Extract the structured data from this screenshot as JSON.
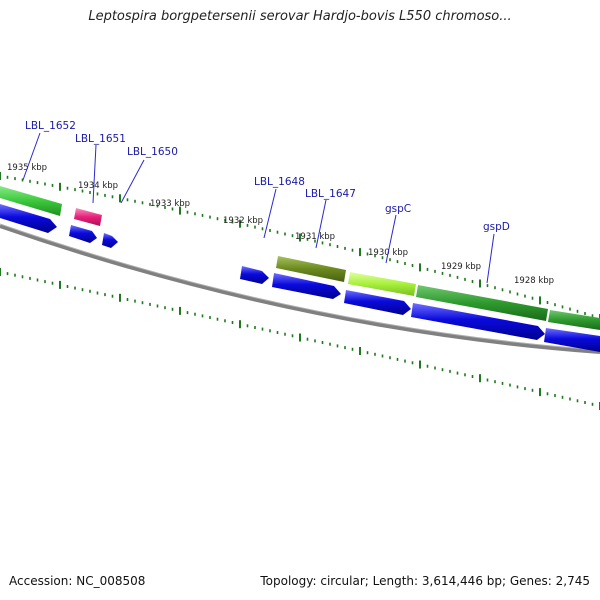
{
  "title": "Leptospira borgpetersenii serovar Hardjo-bovis L550 chromoso...",
  "footer": {
    "accession": "Accession: NC_008508",
    "topology": "Topology: circular; Length: 3,614,446 bp; Genes: 2,745"
  },
  "colors": {
    "backbone": "#808080",
    "tick": "#1f7a1f",
    "cds": "#0a0adc",
    "label": "#1a1aa6",
    "leader_line": "#2a2ad0"
  },
  "kbp_labels": [
    "1935 kbp",
    "1934 kbp",
    "1933 kbp",
    "1932 kbp",
    "1931 kbp",
    "1930 kbp",
    "1929 kbp",
    "1928 kbp"
  ],
  "gene_labels": [
    "LBL_1652",
    "LBL_1651",
    "LBL_1650",
    "LBL_1648",
    "LBL_1647",
    "gspC",
    "gspD"
  ],
  "gene_track_colors": {
    "LBL_1652": "#3cc83c",
    "LBL_1651": "#e8207a",
    "LBL_1648": "#6b8a1e",
    "gspC": "#a8f03c",
    "gspD": "#2e9a2e"
  }
}
